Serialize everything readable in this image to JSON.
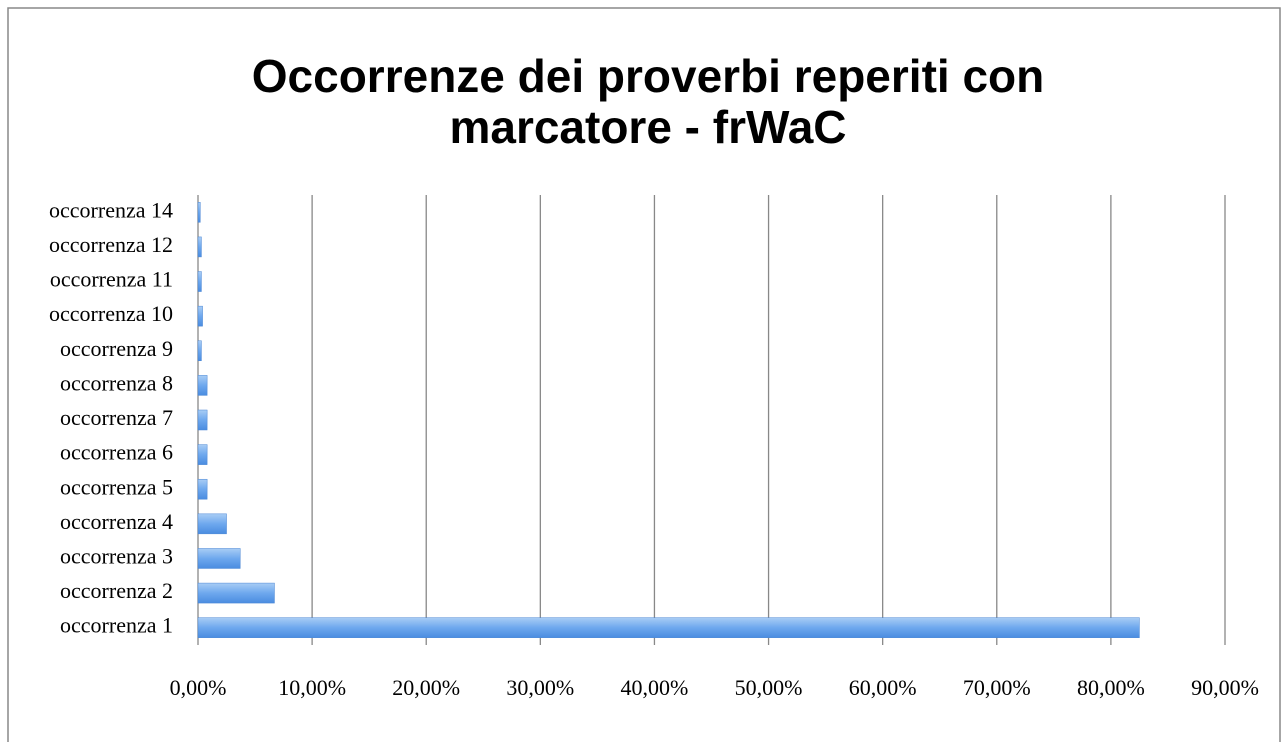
{
  "chart_data": {
    "type": "bar",
    "orientation": "horizontal",
    "title": [
      "Occorrenze dei proverbi reperiti con",
      "marcatore - frWaC"
    ],
    "categories": [
      "occorrenza 1",
      "occorrenza 2",
      "occorrenza 3",
      "occorrenza 4",
      "occorrenza 5",
      "occorrenza 6",
      "occorrenza 7",
      "occorrenza 8",
      "occorrenza 9",
      "occorrenza 10",
      "occorrenza 11",
      "occorrenza 12",
      "occorrenza 14"
    ],
    "values": [
      82.5,
      6.7,
      3.7,
      2.5,
      0.8,
      0.8,
      0.8,
      0.8,
      0.3,
      0.4,
      0.3,
      0.3,
      0.2
    ],
    "color": "#5b9bd5",
    "xlim": [
      0,
      90
    ],
    "xticks": [
      {
        "value": 0,
        "label": "0,00%"
      },
      {
        "value": 10,
        "label": "10,00%"
      },
      {
        "value": 20,
        "label": "20,00%"
      },
      {
        "value": 30,
        "label": "30,00%"
      },
      {
        "value": 40,
        "label": "40,00%"
      },
      {
        "value": 50,
        "label": "50,00%"
      },
      {
        "value": 60,
        "label": "60,00%"
      },
      {
        "value": 70,
        "label": "70,00%"
      },
      {
        "value": 80,
        "label": "80,00%"
      },
      {
        "value": 90,
        "label": "90,00%"
      }
    ],
    "grid": true
  }
}
